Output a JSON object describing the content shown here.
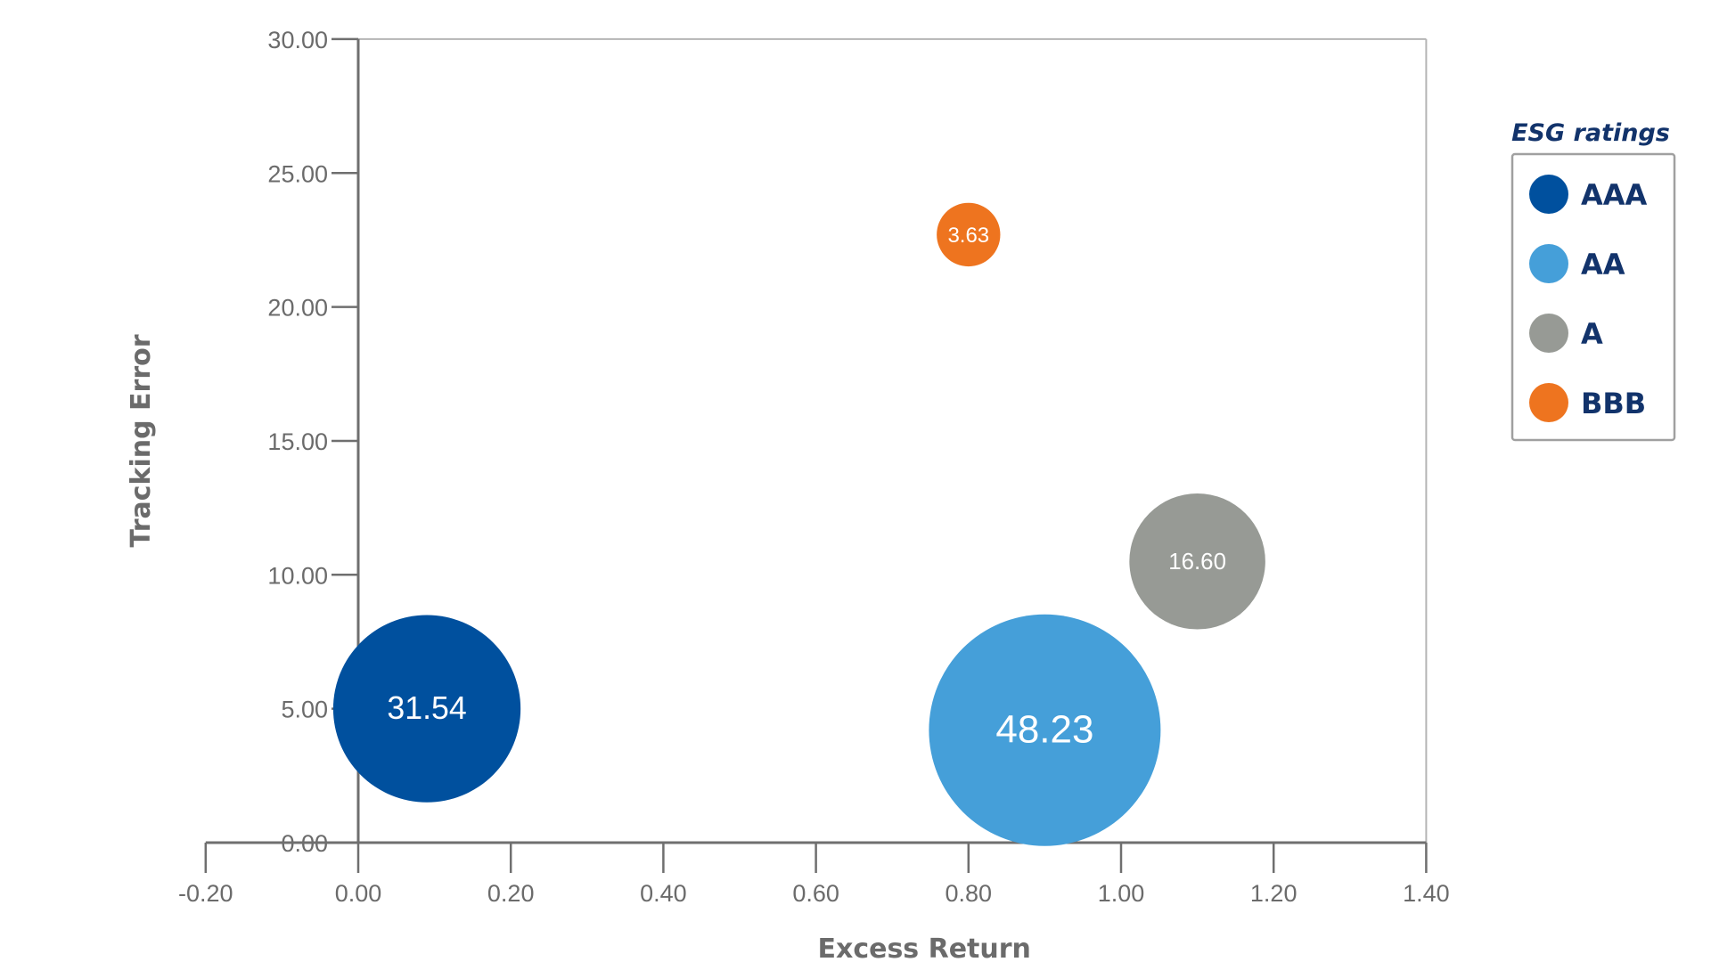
{
  "chart_data": {
    "type": "scatter",
    "subtype": "bubble",
    "xlabel": "Excess Return",
    "ylabel": "Tracking Error",
    "xlim": [
      -0.2,
      1.4
    ],
    "ylim": [
      0.0,
      30.0
    ],
    "x_ticks": [
      "-0.20",
      "0.00",
      "0.20",
      "0.40",
      "0.60",
      "0.80",
      "1.00",
      "1.20",
      "1.40"
    ],
    "y_ticks": [
      "0.00",
      "5.00",
      "10.00",
      "15.00",
      "20.00",
      "25.00",
      "30.00"
    ],
    "legend_title": "ESG ratings",
    "legend_position": "right",
    "series": [
      {
        "name": "AAA",
        "color": "#00509e",
        "x": 0.09,
        "y": 5.0,
        "size": 31.54,
        "label": "31.54"
      },
      {
        "name": "AA",
        "color": "#459fd9",
        "x": 0.9,
        "y": 4.2,
        "size": 48.23,
        "label": "48.23"
      },
      {
        "name": "A",
        "color": "#979a95",
        "x": 1.1,
        "y": 10.5,
        "size": 16.6,
        "label": "16.60"
      },
      {
        "name": "BBB",
        "color": "#ee741f",
        "x": 0.8,
        "y": 22.7,
        "size": 3.63,
        "label": "3.63"
      }
    ],
    "grid": false
  }
}
